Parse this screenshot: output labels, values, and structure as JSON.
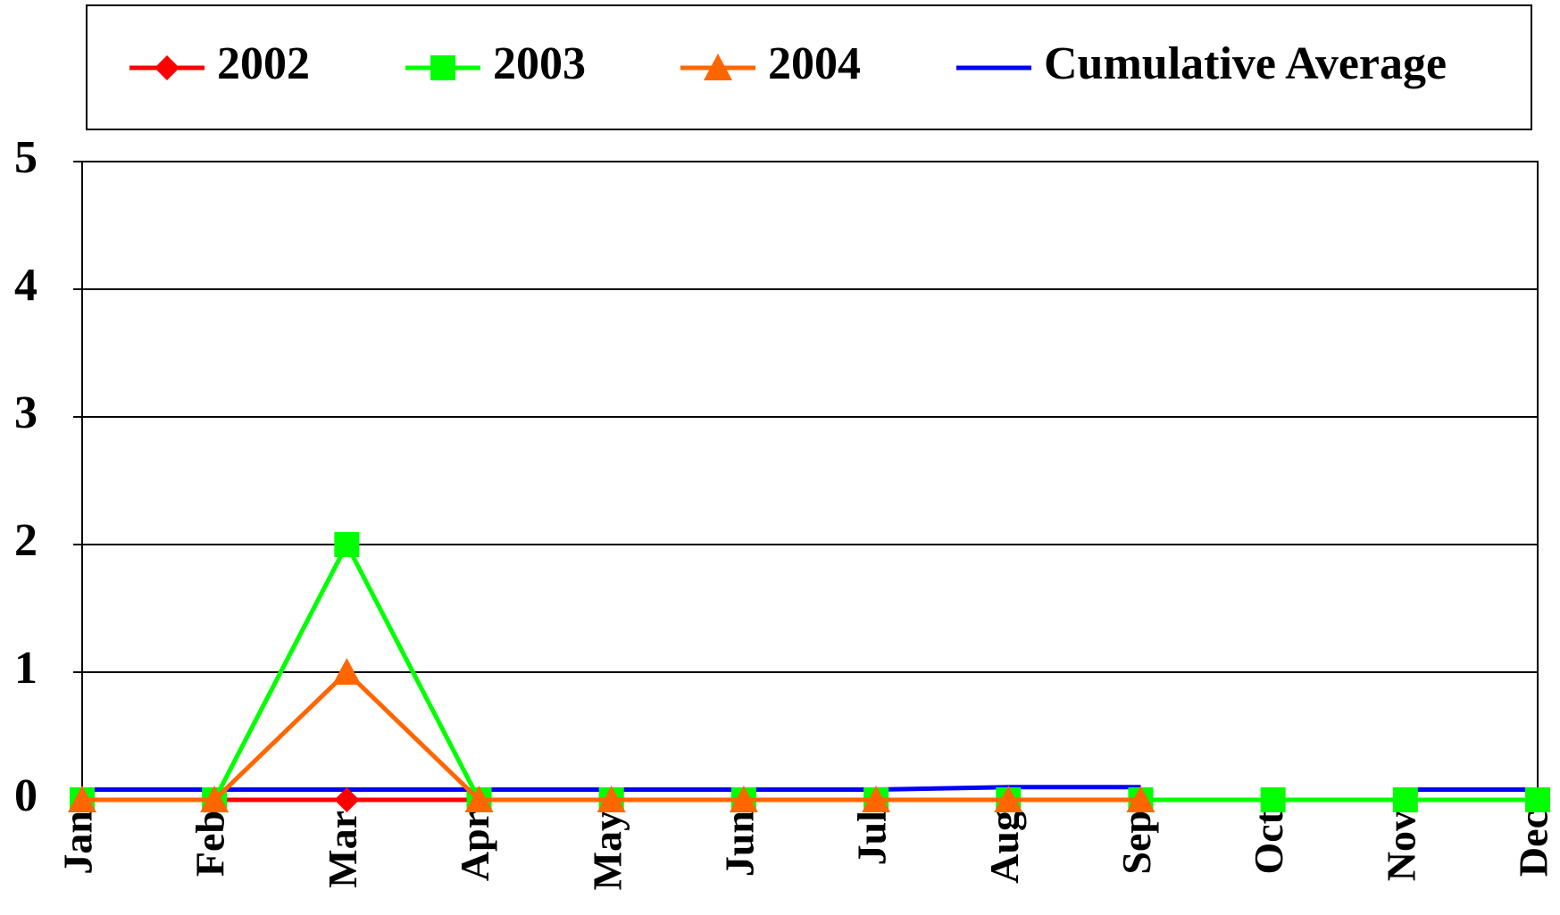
{
  "chart_data": {
    "type": "line",
    "categories": [
      "Jan",
      "Feb",
      "Mar",
      "Apr",
      "May",
      "Jun",
      "Jul",
      "Aug",
      "Sep",
      "Oct",
      "Nov",
      "Dec"
    ],
    "series": [
      {
        "name": "2002",
        "color": "#ff0000",
        "marker": "diamond",
        "values": [
          0,
          0,
          0,
          0,
          0,
          0,
          0,
          0,
          0,
          null,
          null,
          null
        ]
      },
      {
        "name": "2003",
        "color": "#00ff00",
        "marker": "square",
        "values": [
          0,
          0,
          2,
          0,
          0,
          0,
          0,
          0,
          0,
          0,
          0,
          0
        ]
      },
      {
        "name": "2004",
        "color": "#ff6600",
        "marker": "triangle",
        "values": [
          0,
          0,
          1,
          0,
          0,
          0,
          0,
          0,
          0,
          null,
          null,
          null
        ]
      },
      {
        "name": "Cumulative Average",
        "color": "#0000ff",
        "marker": "none",
        "values": [
          0.08,
          0.08,
          0.08,
          0.08,
          0.08,
          0.08,
          0.08,
          0.1,
          0.1,
          null,
          0.08,
          0.08
        ]
      }
    ],
    "ylim": [
      0,
      5
    ],
    "yticks": [
      0,
      1,
      2,
      3,
      4,
      5
    ],
    "grid": true,
    "legend": "top"
  }
}
